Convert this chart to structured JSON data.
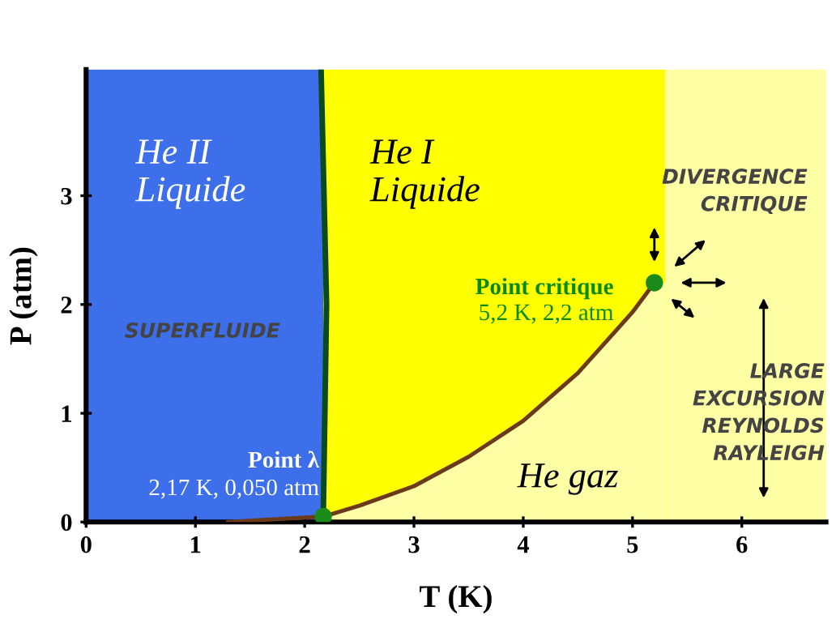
{
  "chart_data": {
    "type": "line",
    "xlabel": "T (K)",
    "ylabel": "P (atm)",
    "xlim": [
      0,
      6.77
    ],
    "ylim": [
      0,
      4.16
    ],
    "xticks": [
      0,
      1,
      2,
      3,
      4,
      5,
      6
    ],
    "yticks": [
      0,
      1,
      2,
      3
    ],
    "grid": false,
    "legend": false,
    "bands": [
      {
        "axis": "x",
        "from": 0,
        "to": 2.17,
        "color": "#3d6fea"
      },
      {
        "axis": "x",
        "from": 2.17,
        "to": 6.77,
        "color": "#ffff00"
      },
      {
        "axis": "x",
        "from": 5.3,
        "to": 6.77,
        "color": "#ffffa6"
      }
    ],
    "series": [
      {
        "type": "area",
        "color": "#ffffa6",
        "x": [
          2.17,
          2.5,
          3,
          3.5,
          4,
          4.5,
          5,
          5.2,
          5.3
        ],
        "values": [
          0.05,
          0.15,
          0.33,
          0.6,
          0.93,
          1.37,
          1.93,
          2.2,
          2.2
        ]
      },
      {
        "color": "#6b3a1a",
        "x": [
          1.3,
          1.8,
          2.17,
          2.5,
          3,
          3.5,
          4,
          4.5,
          5,
          5.2
        ],
        "values": [
          0,
          0.03,
          0.05,
          0.15,
          0.33,
          0.6,
          0.93,
          1.37,
          1.93,
          2.2
        ]
      },
      {
        "color": "#0b4a1a",
        "x": [
          2.17,
          2.2,
          2.15
        ],
        "values": [
          0.05,
          2.0,
          4.16
        ]
      },
      {
        "type": "scatter",
        "color": "#1a8a1a",
        "marker": "circle",
        "x": [
          2.17,
          5.2
        ],
        "values": [
          0.05,
          2.2
        ]
      }
    ],
    "annotations": [
      "He II\nLiquide",
      "He I\nLiquide",
      "SUPERFLUIDE",
      "He gaz",
      "Point λ",
      "2,17 K, 0,050 atm",
      "Point critique",
      "5,2 K, 2,2 atm",
      "DIVERGENCE\nCRITIQUE",
      "LARGE\nEXCURSION\nREYNOLDS\nRAYLEIGH"
    ]
  }
}
